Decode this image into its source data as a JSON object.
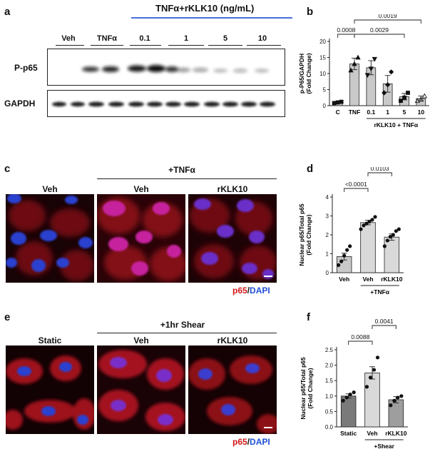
{
  "panels": {
    "a": "a",
    "b": "b",
    "c": "c",
    "d": "d",
    "e": "e",
    "f": "f"
  },
  "blot": {
    "header_group": "TNFα+rKLK10 (ng/mL)",
    "lanes": [
      "Veh",
      "TNFα",
      "0.1",
      "1",
      "5",
      "10"
    ],
    "rows": [
      "P-p65",
      "GAPDH"
    ]
  },
  "micro_c": {
    "group_label": "+TNFα",
    "titles": [
      "Veh",
      "Veh",
      "rKLK10"
    ],
    "legend_a": "p65",
    "legend_sep": "/",
    "legend_b": "DAPI"
  },
  "micro_e": {
    "group_label": "+1hr Shear",
    "titles": [
      "Static",
      "Veh",
      "rKLK10"
    ],
    "legend_a": "p65",
    "legend_sep": "/",
    "legend_b": "DAPI"
  },
  "colors": {
    "red_stain": "#d21a1a",
    "blue_stain": "#1f4fd6",
    "bracket_blue": "#4a6fd8"
  },
  "chart_data": [
    {
      "id": "b",
      "type": "bar",
      "ylabel_line1": "p-P65/GAPDH",
      "ylabel_line2": "(Fold Change)",
      "categories": [
        "C",
        "TNF",
        "0.1",
        "1",
        "5",
        "10"
      ],
      "values": [
        1.0,
        13.0,
        11.8,
        6.8,
        2.8,
        2.2
      ],
      "errors": [
        0.3,
        1.8,
        2.2,
        2.6,
        1.0,
        0.8
      ],
      "points": [
        [
          0.8,
          1.0,
          1.2
        ],
        [
          11.0,
          13.0,
          15.0
        ],
        [
          9.5,
          11.5,
          14.5
        ],
        [
          4.0,
          6.5,
          10.5
        ],
        [
          1.5,
          2.5,
          4.0
        ],
        [
          1.5,
          2.0,
          3.0
        ]
      ],
      "ylim": [
        0,
        20
      ],
      "yticks": [
        0,
        5,
        10,
        15,
        20
      ],
      "group_label": "rKLK10 + TNFα",
      "group_start": 2,
      "group_end": 5,
      "comparisons": [
        {
          "from": 0,
          "to": 1,
          "label": "0.0008",
          "level": 0
        },
        {
          "from": 1,
          "to": 4,
          "label": "0.0029",
          "level": 0
        },
        {
          "from": 1,
          "to": 5,
          "label": "0.0019",
          "level": 1
        }
      ],
      "bar_colors": [
        "#c9c9c9",
        "#c9c9c9",
        "#c9c9c9",
        "#c9c9c9",
        "#c9c9c9",
        "#c9c9c9"
      ]
    },
    {
      "id": "d",
      "type": "bar",
      "ylabel_line1": "Nuclear p65/Total p65",
      "ylabel_line2": "(Fold Change)",
      "categories": [
        "Veh",
        "Veh",
        "rKLK10"
      ],
      "values": [
        0.85,
        2.65,
        1.88
      ],
      "errors": [
        0.18,
        0.12,
        0.17
      ],
      "points": [
        [
          0.4,
          0.6,
          0.9,
          1.2,
          1.4
        ],
        [
          2.3,
          2.5,
          2.6,
          2.7,
          2.8,
          2.95
        ],
        [
          1.4,
          1.7,
          1.9,
          2.0,
          2.2,
          2.3
        ]
      ],
      "ylim": [
        0,
        4
      ],
      "yticks": [
        0,
        1,
        2,
        3,
        4
      ],
      "group_label": "+TNFα",
      "group_start": 1,
      "group_end": 2,
      "comparisons": [
        {
          "from": 0,
          "to": 1,
          "label": "<0.0001",
          "level": 0
        },
        {
          "from": 1,
          "to": 2,
          "label": "0.0103",
          "level": 1
        }
      ],
      "bar_colors": [
        "#c9c9c9",
        "#d9d9d9",
        "#d9d9d9"
      ]
    },
    {
      "id": "f",
      "type": "bar",
      "ylabel_line1": "Nuclear p65/Total p65",
      "ylabel_line2": "(Fold Change)",
      "categories": [
        "Static",
        "Veh",
        "rKLK10"
      ],
      "values": [
        1.0,
        1.75,
        0.88
      ],
      "errors": [
        0.07,
        0.2,
        0.1
      ],
      "points": [
        [
          0.85,
          0.95,
          1.05,
          1.12
        ],
        [
          1.3,
          1.6,
          1.85,
          2.25
        ],
        [
          0.7,
          0.85,
          0.95,
          1.0
        ]
      ],
      "ylim": [
        0,
        2.5
      ],
      "yticks": [
        0.0,
        0.5,
        1.0,
        1.5,
        2.0,
        2.5
      ],
      "group_label": "+Shear",
      "group_start": 1,
      "group_end": 2,
      "comparisons": [
        {
          "from": 0,
          "to": 1,
          "label": "0.0088",
          "level": 0
        },
        {
          "from": 1,
          "to": 2,
          "label": "0.0041",
          "level": 1
        }
      ],
      "bar_colors": [
        "#7a7a7a",
        "#d9d9d9",
        "#9e9e9e"
      ]
    }
  ]
}
